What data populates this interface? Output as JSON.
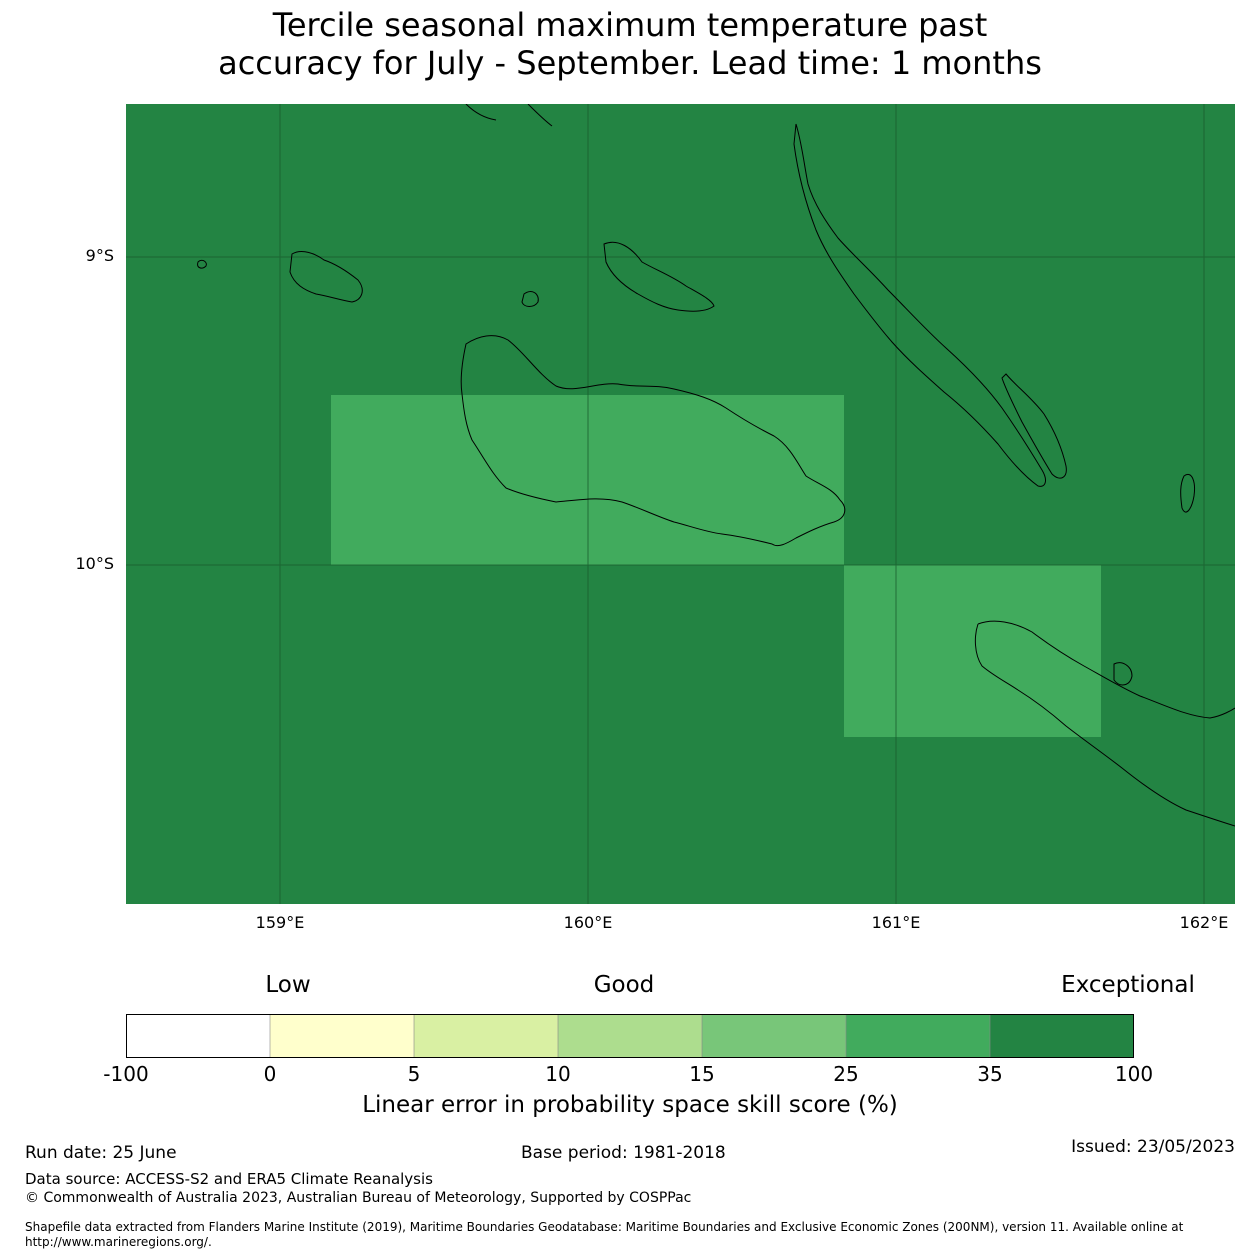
{
  "title": {
    "line1": "Tercile seasonal maximum temperature past",
    "line2": "accuracy for July - September. Lead time: 1 months"
  },
  "map": {
    "background_color": "#238443",
    "highlight_color": "#41ab5d",
    "latitude_labels": [
      "9°S",
      "10°S"
    ],
    "longitude_labels": [
      "159°E",
      "160°E",
      "161°E",
      "162°E"
    ]
  },
  "legend": {
    "categories": [
      "Low",
      "Good",
      "Exceptional"
    ],
    "ticks": [
      "-100",
      "0",
      "5",
      "10",
      "15",
      "25",
      "35",
      "100"
    ],
    "colors": [
      "#ffffff",
      "#ffffcc",
      "#d9f0a3",
      "#addd8e",
      "#78c679",
      "#41ab5d",
      "#238443"
    ],
    "label": "Linear error in probability space skill score (%)"
  },
  "footer": {
    "run_date": "Run date: 25 June",
    "base_period": "Base period: 1981-2018",
    "issued": "Issued: 23/05/2023",
    "data_source": "Data source: ACCESS-S2 and ERA5 Climate Reanalysis",
    "copyright": "© Commonwealth of Australia 2023, Australian Bureau of Meteorology, Supported by COSPPac",
    "shapefile_line1": "Shapefile data extracted from Flanders Marine Institute (2019), Maritime Boundaries Geodatabase: Maritime Boundaries and Exclusive Economic Zones (200NM), version 11. Available online at",
    "shapefile_line2": "http://www.marineregions.org/."
  }
}
